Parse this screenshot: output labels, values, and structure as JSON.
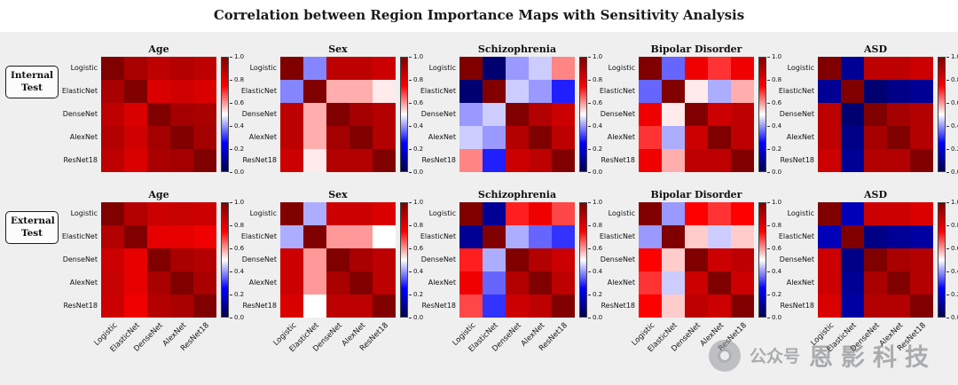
{
  "figure": {
    "title": "Correlation between Region Importance Maps with Sensitivity Analysis",
    "watermark": {
      "prefix": "公众号",
      "name": "恩影科技"
    }
  },
  "chart_data": {
    "type": "heatmap",
    "title": "Correlation between Region Importance Maps with Sensitivity Analysis",
    "colormap": "seismic (dark blue -> blue -> white -> red -> dark red)",
    "vmin": 0.0,
    "vmax": 1.0,
    "grid": "2 rows x 5 columns of 5x5 correlation matrices, each with its own colorbar",
    "colorbar_ticks": [
      "1.0",
      "0.8",
      "0.6",
      "0.4",
      "0.2",
      "0.0"
    ],
    "models": [
      "Logistic",
      "ElasticNet",
      "DenseNet",
      "AlexNet",
      "ResNet18"
    ],
    "row_labels": [
      "Internal Test",
      "External Test"
    ],
    "col_titles": [
      "Age",
      "Sex",
      "Schizophrenia",
      "Bipolar Disorder",
      "ASD"
    ],
    "rows": [
      {
        "label": "Internal Test",
        "panels": [
          {
            "title": "Age",
            "matrix": [
              [
                1.0,
                0.92,
                0.88,
                0.9,
                0.88
              ],
              [
                0.92,
                1.0,
                0.82,
                0.84,
                0.82
              ],
              [
                0.88,
                0.82,
                1.0,
                0.93,
                0.92
              ],
              [
                0.9,
                0.84,
                0.93,
                1.0,
                0.93
              ],
              [
                0.88,
                0.82,
                0.92,
                0.93,
                1.0
              ]
            ]
          },
          {
            "title": "Sex",
            "matrix": [
              [
                1.0,
                0.38,
                0.88,
                0.88,
                0.85
              ],
              [
                0.38,
                1.0,
                0.58,
                0.58,
                0.52
              ],
              [
                0.88,
                0.58,
                1.0,
                0.93,
                0.9
              ],
              [
                0.88,
                0.58,
                0.93,
                1.0,
                0.9
              ],
              [
                0.85,
                0.52,
                0.9,
                0.9,
                1.0
              ]
            ]
          },
          {
            "title": "Schizophrenia",
            "matrix": [
              [
                1.0,
                0.05,
                0.4,
                0.45,
                0.62
              ],
              [
                0.05,
                1.0,
                0.45,
                0.4,
                0.28
              ],
              [
                0.4,
                0.45,
                1.0,
                0.9,
                0.85
              ],
              [
                0.45,
                0.4,
                0.9,
                1.0,
                0.88
              ],
              [
                0.62,
                0.28,
                0.85,
                0.88,
                1.0
              ]
            ]
          },
          {
            "title": "Bipolar Disorder",
            "matrix": [
              [
                1.0,
                0.35,
                0.78,
                0.7,
                0.78
              ],
              [
                0.35,
                1.0,
                0.52,
                0.42,
                0.58
              ],
              [
                0.78,
                0.52,
                1.0,
                0.85,
                0.88
              ],
              [
                0.7,
                0.42,
                0.85,
                1.0,
                0.88
              ],
              [
                0.78,
                0.58,
                0.88,
                0.88,
                1.0
              ]
            ]
          },
          {
            "title": "ASD",
            "matrix": [
              [
                1.0,
                0.1,
                0.88,
                0.88,
                0.85
              ],
              [
                0.1,
                1.0,
                0.05,
                0.08,
                0.1
              ],
              [
                0.88,
                0.05,
                1.0,
                0.93,
                0.9
              ],
              [
                0.88,
                0.08,
                0.93,
                1.0,
                0.9
              ],
              [
                0.85,
                0.1,
                0.9,
                0.9,
                1.0
              ]
            ]
          }
        ]
      },
      {
        "label": "External Test",
        "panels": [
          {
            "title": "Age",
            "matrix": [
              [
                1.0,
                0.9,
                0.85,
                0.86,
                0.85
              ],
              [
                0.9,
                1.0,
                0.8,
                0.8,
                0.78
              ],
              [
                0.85,
                0.8,
                1.0,
                0.92,
                0.9
              ],
              [
                0.86,
                0.8,
                0.92,
                1.0,
                0.92
              ],
              [
                0.85,
                0.78,
                0.9,
                0.92,
                1.0
              ]
            ]
          },
          {
            "title": "Sex",
            "matrix": [
              [
                1.0,
                0.42,
                0.85,
                0.85,
                0.82
              ],
              [
                0.42,
                1.0,
                0.6,
                0.6,
                0.5
              ],
              [
                0.85,
                0.6,
                1.0,
                0.92,
                0.88
              ],
              [
                0.85,
                0.6,
                0.92,
                1.0,
                0.88
              ],
              [
                0.82,
                0.5,
                0.88,
                0.88,
                1.0
              ]
            ]
          },
          {
            "title": "Schizophrenia",
            "matrix": [
              [
                1.0,
                0.1,
                0.72,
                0.78,
                0.68
              ],
              [
                0.1,
                1.0,
                0.42,
                0.35,
                0.3
              ],
              [
                0.72,
                0.42,
                1.0,
                0.9,
                0.85
              ],
              [
                0.78,
                0.35,
                0.9,
                1.0,
                0.88
              ],
              [
                0.68,
                0.3,
                0.85,
                0.88,
                1.0
              ]
            ]
          },
          {
            "title": "Bipolar Disorder",
            "matrix": [
              [
                1.0,
                0.4,
                0.75,
                0.7,
                0.75
              ],
              [
                0.4,
                1.0,
                0.55,
                0.45,
                0.55
              ],
              [
                0.75,
                0.55,
                1.0,
                0.85,
                0.88
              ],
              [
                0.7,
                0.45,
                0.85,
                1.0,
                0.85
              ],
              [
                0.75,
                0.55,
                0.88,
                0.85,
                1.0
              ]
            ]
          },
          {
            "title": "ASD",
            "matrix": [
              [
                1.0,
                0.15,
                0.85,
                0.85,
                0.82
              ],
              [
                0.15,
                1.0,
                0.08,
                0.1,
                0.12
              ],
              [
                0.85,
                0.08,
                1.0,
                0.92,
                0.9
              ],
              [
                0.85,
                0.1,
                0.92,
                1.0,
                0.9
              ],
              [
                0.82,
                0.12,
                0.9,
                0.9,
                1.0
              ]
            ]
          }
        ]
      }
    ]
  }
}
